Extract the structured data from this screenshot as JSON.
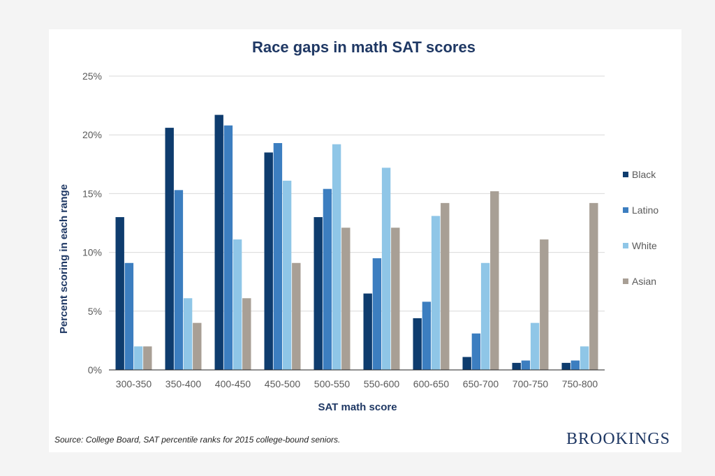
{
  "chart_data": {
    "type": "bar",
    "title": "Race gaps in math SAT scores",
    "xlabel": "SAT math score",
    "ylabel": "Percent scoring in each range",
    "ylim": [
      0,
      25
    ],
    "yticks": [
      "0%",
      "5%",
      "10%",
      "15%",
      "20%",
      "25%"
    ],
    "grid": true,
    "legend_position": "right",
    "categories": [
      "300-350",
      "350-400",
      "400-450",
      "450-500",
      "500-550",
      "550-600",
      "600-650",
      "650-700",
      "700-750",
      "750-800"
    ],
    "series": [
      {
        "name": "Black",
        "color": "#0e3c6e",
        "values": [
          13.0,
          20.6,
          21.7,
          18.5,
          13.0,
          6.5,
          4.4,
          1.1,
          0.6,
          0.6
        ]
      },
      {
        "name": "Latino",
        "color": "#3c7ec0",
        "values": [
          9.1,
          15.3,
          20.8,
          19.3,
          15.4,
          9.5,
          5.8,
          3.1,
          0.8,
          0.8
        ]
      },
      {
        "name": "White",
        "color": "#8fc6e7",
        "values": [
          2.0,
          6.1,
          11.1,
          16.1,
          19.2,
          17.2,
          13.1,
          9.1,
          4.0,
          2.0
        ]
      },
      {
        "name": "Asian",
        "color": "#a89f95",
        "values": [
          2.0,
          4.0,
          6.1,
          9.1,
          12.1,
          12.1,
          14.2,
          15.2,
          11.1,
          14.2
        ]
      }
    ]
  },
  "footer": {
    "source": "Source: College Board, SAT percentile ranks for 2015 college-bound seniors.",
    "brand": "BROOKINGS"
  }
}
